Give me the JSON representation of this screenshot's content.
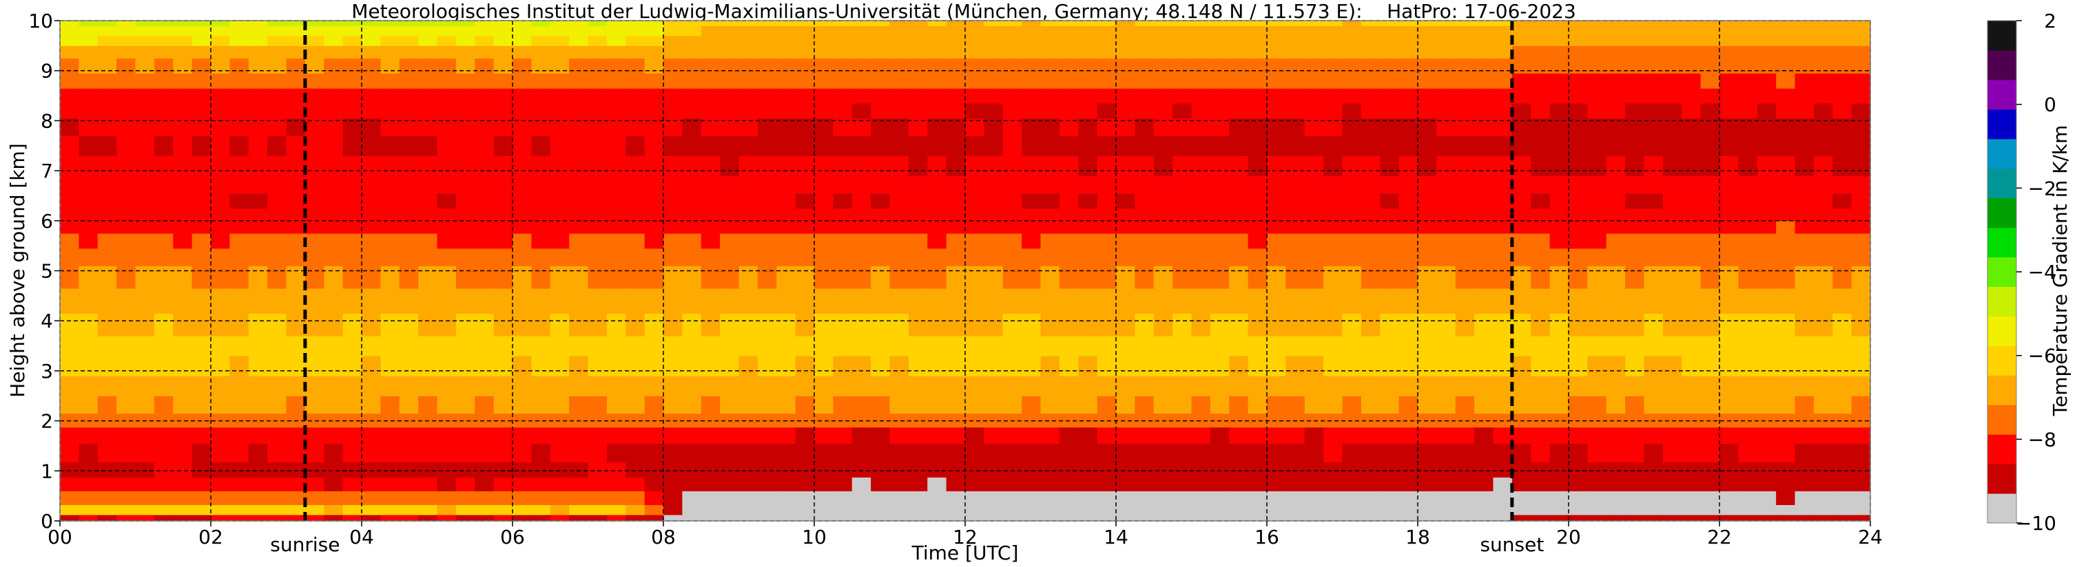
{
  "chart_data": {
    "type": "heatmap",
    "title": "Meteorologisches Institut der Ludwig-Maximilians-Universität (München, Germany; 48.148 N / 11.573 E):    HatPro: 17-06-2023",
    "xlabel": "Time [UTC]",
    "ylabel": "Height above ground [km]",
    "xlim": [
      0,
      24
    ],
    "ylim": [
      0,
      10
    ],
    "x_ticks": [
      "00",
      "02",
      "04",
      "06",
      "08",
      "10",
      "12",
      "14",
      "16",
      "18",
      "20",
      "22",
      "24"
    ],
    "y_ticks": [
      "0",
      "1",
      "2",
      "3",
      "4",
      "5",
      "6",
      "7",
      "8",
      "9",
      "10"
    ],
    "grid": "dashed",
    "colorbar": {
      "label": "Temperature Gradient in K/km",
      "range": [
        -10,
        2
      ],
      "ticks": [
        "−10",
        "−8",
        "−6",
        "−4",
        "−2",
        "0",
        "2"
      ],
      "colors": [
        "#cccccc",
        "#c80000",
        "#ff0000",
        "#ff6e00",
        "#ffaa00",
        "#ffd200",
        "#f0f000",
        "#c8f000",
        "#64f000",
        "#00dc00",
        "#00a000",
        "#009696",
        "#0096c8",
        "#0000c8",
        "#8c00b4",
        "#500050",
        "#141414"
      ]
    },
    "annotations": [
      {
        "text": "sunrise",
        "x": 3.25
      },
      {
        "text": "sunset",
        "x": 19.25
      }
    ],
    "vertical_lines": [
      3.25,
      19.25
    ],
    "profile": {
      "heights": [
        0.05,
        0.2,
        0.45,
        0.75,
        1.0,
        1.35,
        1.75,
        2.0,
        2.3,
        2.7,
        3.1,
        3.5,
        3.9,
        4.4,
        4.9,
        5.3,
        5.6,
        5.9,
        6.1,
        6.4,
        6.7,
        7.1,
        7.5,
        7.9,
        8.2,
        8.5,
        8.8,
        9.1,
        9.4,
        9.6,
        9.8,
        10.0
      ],
      "values_early": [
        -8.6,
        -6.4,
        -7.4,
        -8.5,
        -8.7,
        -8.5,
        -8.3,
        -7.4,
        -7.1,
        -6.6,
        -6.4,
        -6.3,
        -6.5,
        -6.8,
        -7.2,
        -7.5,
        -7.8,
        -8.0,
        -8.3,
        -8.5,
        -8.2,
        -8.4,
        -8.6,
        -8.5,
        -8.3,
        -8.0,
        -7.6,
        -7.2,
        -6.6,
        -5.8,
        -5.2,
        -5.0
      ],
      "values_midday": [
        -10.0,
        -10.0,
        -9.6,
        -9.2,
        -8.9,
        -8.7,
        -8.5,
        -7.5,
        -7.1,
        -6.6,
        -6.4,
        -6.3,
        -6.5,
        -6.8,
        -7.2,
        -7.5,
        -7.8,
        -8.0,
        -8.3,
        -8.5,
        -8.2,
        -8.5,
        -8.7,
        -8.6,
        -8.5,
        -8.2,
        -7.7,
        -7.3,
        -7.0,
        -6.8,
        -6.6,
        -6.4
      ],
      "values_late": [
        -9.0,
        -9.8,
        -9.4,
        -9.0,
        -8.8,
        -8.6,
        -8.4,
        -7.5,
        -7.1,
        -6.6,
        -6.4,
        -6.3,
        -6.5,
        -6.8,
        -7.2,
        -7.5,
        -7.8,
        -8.0,
        -8.3,
        -8.5,
        -8.4,
        -8.6,
        -8.8,
        -8.7,
        -8.6,
        -8.4,
        -8.0,
        -7.6,
        -7.3,
        -7.0,
        -6.9,
        -6.7
      ]
    }
  }
}
